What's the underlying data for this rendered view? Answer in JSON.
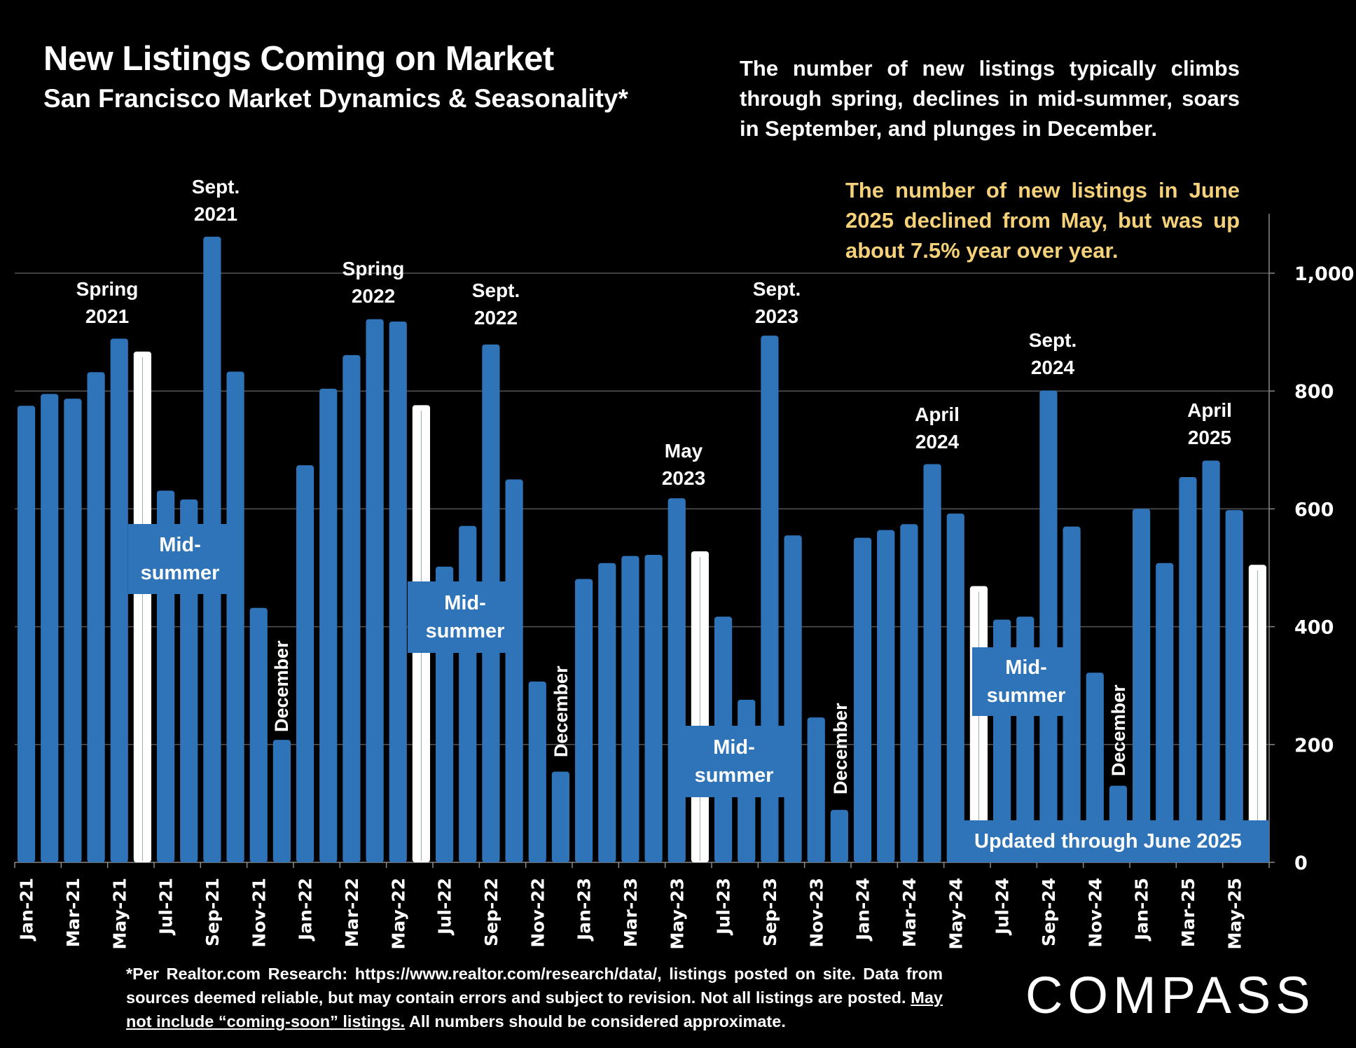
{
  "header": {
    "title": "New Listings Coming on Market",
    "subtitle": "San Francisco Market Dynamics & Seasonality*"
  },
  "description": "The number of new listings typically climbs through spring, declines in mid-summer, soars in September, and plunges in December.",
  "highlight_note": "The number of new listings in June 2025 declined from May, but was up about 7.5% year over year.",
  "annotations": {
    "spring_2021": [
      "Spring",
      "2021"
    ],
    "sept_2021": [
      "Sept.",
      "2021"
    ],
    "spring_2022": [
      "Spring",
      "2022"
    ],
    "sept_2022": [
      "Sept.",
      "2022"
    ],
    "may_2023": [
      "May",
      "2023"
    ],
    "sept_2023": [
      "Sept.",
      "2023"
    ],
    "april_2024": [
      "April",
      "2024"
    ],
    "sept_2024": [
      "Sept.",
      "2024"
    ],
    "april_2025": [
      "April",
      "2025"
    ],
    "midsummer": [
      "Mid-",
      "summer"
    ],
    "december": "December",
    "updated": "Updated through June 2025"
  },
  "footer": {
    "line_a": "*Per Realtor.com Research:  https://www.realtor.com/research/data/, listings posted on site. Data from sources deemed reliable, but may contain errors and subject to revision. Not all listings are posted. ",
    "underlined": "May not include “coming-soon” listings.",
    "line_b": " All numbers should be considered approximate."
  },
  "logo": "COMPASS",
  "colors": {
    "background": "#000000",
    "bar": "#2f74b8",
    "highlight_bar": "#ffffff",
    "note_text": "#f5d27a",
    "gridline": "#555555"
  },
  "chart_data": {
    "type": "bar",
    "title": "New Listings Coming on Market",
    "subtitle": "San Francisco Market Dynamics & Seasonality*",
    "xlabel": "",
    "ylabel": "",
    "ylim": [
      0,
      1100
    ],
    "yticks": [
      0,
      200,
      400,
      600,
      800,
      1000
    ],
    "ytick_labels": [
      "0",
      "200",
      "400",
      "600",
      "800",
      "1,000"
    ],
    "y_axis_side": "right",
    "grid": true,
    "categories": [
      "Jan-21",
      "Feb-21",
      "Mar-21",
      "Apr-21",
      "May-21",
      "Jun-21",
      "Jul-21",
      "Aug-21",
      "Sep-21",
      "Oct-21",
      "Nov-21",
      "Dec-21",
      "Jan-22",
      "Feb-22",
      "Mar-22",
      "Apr-22",
      "May-22",
      "Jun-22",
      "Jul-22",
      "Aug-22",
      "Sep-22",
      "Oct-22",
      "Nov-22",
      "Dec-22",
      "Jan-23",
      "Feb-23",
      "Mar-23",
      "Apr-23",
      "May-23",
      "Jun-23",
      "Jul-23",
      "Aug-23",
      "Sep-23",
      "Oct-23",
      "Nov-23",
      "Dec-23",
      "Jan-24",
      "Feb-24",
      "Mar-24",
      "Apr-24",
      "May-24",
      "Jun-24",
      "Jul-24",
      "Aug-24",
      "Sep-24",
      "Oct-24",
      "Nov-24",
      "Dec-24",
      "Jan-25",
      "Feb-25",
      "Mar-25",
      "Apr-25",
      "May-25",
      "Jun-25"
    ],
    "values": [
      775,
      795,
      787,
      832,
      889,
      867,
      631,
      616,
      1062,
      833,
      432,
      208,
      674,
      804,
      861,
      922,
      918,
      776,
      502,
      571,
      879,
      650,
      307,
      154,
      481,
      508,
      520,
      522,
      618,
      528,
      417,
      276,
      894,
      555,
      246,
      89,
      551,
      564,
      574,
      676,
      592,
      469,
      412,
      417,
      801,
      570,
      322,
      130,
      600,
      508,
      654,
      682,
      598,
      505
    ],
    "highlighted": [
      "Jun-21",
      "Jun-22",
      "Jun-23",
      "Jun-24",
      "Jun-25"
    ],
    "tick_labels_shown": [
      "Jan-21",
      "Mar-21",
      "May-21",
      "Jul-21",
      "Sep-21",
      "Nov-21",
      "Jan-22",
      "Mar-22",
      "May-22",
      "Jul-22",
      "Sep-22",
      "Nov-22",
      "Jan-23",
      "Mar-23",
      "May-23",
      "Jul-23",
      "Sep-23",
      "Nov-23",
      "Jan-24",
      "Mar-24",
      "May-24",
      "Jul-24",
      "Sep-24",
      "Nov-24",
      "Jan-25",
      "Mar-25",
      "May-25"
    ]
  }
}
